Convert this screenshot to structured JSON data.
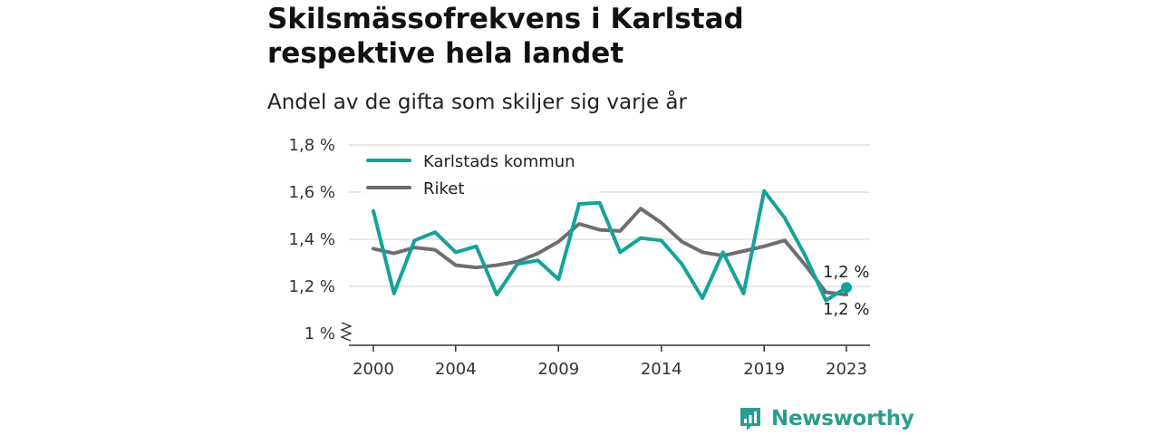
{
  "header": {
    "title_lines": [
      "Skilsmässofrekvens i Karlstad",
      "respektive hela landet"
    ],
    "subtitle": "Andel av de gifta som skiljer sig varje år"
  },
  "brand": {
    "name": "Newsworthy",
    "icon": "bar-chart-logo-icon",
    "color": "#2a9d8f"
  },
  "chart_data": {
    "type": "line",
    "title": "Skilsmässofrekvens i Karlstad respektive hela landet",
    "subtitle": "Andel av de gifta som skiljer sig varje år",
    "xlabel": "",
    "ylabel": "",
    "xlim": [
      2000,
      2023
    ],
    "ylim": [
      1.0,
      1.8
    ],
    "x_ticks": [
      2000,
      2004,
      2009,
      2014,
      2019,
      2023
    ],
    "x_tick_labels": [
      "2000",
      "2004",
      "2009",
      "2014",
      "2019",
      "2023"
    ],
    "y_ticks": [
      1.0,
      1.2,
      1.4,
      1.6,
      1.8
    ],
    "y_tick_labels": [
      "1 %",
      "1,2 %",
      "1,4 %",
      "1,6 %",
      "1,8 %"
    ],
    "axis_break": true,
    "grid": "horizontal",
    "legend_position": "top-left",
    "x": [
      2000,
      2001,
      2002,
      2003,
      2004,
      2005,
      2006,
      2007,
      2008,
      2009,
      2010,
      2011,
      2012,
      2013,
      2014,
      2015,
      2016,
      2017,
      2018,
      2019,
      2020,
      2021,
      2022,
      2023
    ],
    "series": [
      {
        "name": "Karlstads kommun",
        "color": "#14a39a",
        "values": [
          1.52,
          1.17,
          1.395,
          1.43,
          1.345,
          1.37,
          1.165,
          1.295,
          1.31,
          1.23,
          1.55,
          1.555,
          1.345,
          1.405,
          1.395,
          1.295,
          1.15,
          1.345,
          1.17,
          1.605,
          1.49,
          1.33,
          1.14,
          1.195
        ],
        "end_label": "1,2 %"
      },
      {
        "name": "Riket",
        "color": "#6f6d72",
        "values": [
          1.36,
          1.34,
          1.365,
          1.355,
          1.29,
          1.28,
          1.29,
          1.305,
          1.34,
          1.39,
          1.465,
          1.44,
          1.435,
          1.53,
          1.47,
          1.39,
          1.345,
          1.33,
          1.35,
          1.37,
          1.395,
          1.29,
          1.175,
          1.165
        ],
        "end_label": "1,2 %"
      }
    ]
  }
}
